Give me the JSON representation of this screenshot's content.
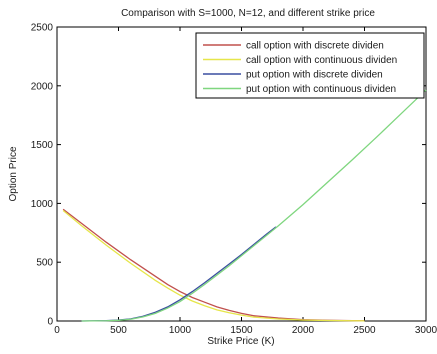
{
  "chart_data": {
    "type": "line",
    "title": "Comparison with S=1000, N=12, and different strike price",
    "xlabel": "Strike Price (K)",
    "ylabel": "Option Price",
    "xlim": [
      0,
      3000
    ],
    "ylim": [
      0,
      2500
    ],
    "xticks": [
      0,
      500,
      1000,
      1500,
      2000,
      2500,
      3000
    ],
    "yticks": [
      0,
      500,
      1000,
      1500,
      2000,
      2500
    ],
    "xtick_labels": [
      "0",
      "500",
      "1000",
      "1500",
      "2000",
      "2500",
      "3000"
    ],
    "ytick_labels": [
      "0",
      "500",
      "1000",
      "1500",
      "2000",
      "2500"
    ],
    "grid": false,
    "legend_position": "top-right",
    "series": [
      {
        "name": "call option with discrete dividen",
        "color": "#c0504d",
        "x": [
          50,
          200,
          400,
          600,
          800,
          900,
          1000,
          1100,
          1200,
          1300,
          1400,
          1500,
          1600,
          1800,
          2000,
          2200,
          2400,
          2500
        ],
        "y": [
          950,
          830,
          670,
          520,
          380,
          310,
          250,
          200,
          160,
          120,
          90,
          65,
          45,
          25,
          12,
          6,
          3,
          2
        ]
      },
      {
        "name": "call option with continuous dividen",
        "color": "#e6e64a",
        "x": [
          50,
          200,
          400,
          600,
          800,
          900,
          1000,
          1100,
          1200,
          1300,
          1400,
          1500,
          1600,
          1800,
          2000,
          2200,
          2400,
          2500
        ],
        "y": [
          940,
          810,
          645,
          490,
          345,
          280,
          220,
          170,
          130,
          95,
          70,
          50,
          33,
          17,
          8,
          4,
          2,
          1
        ]
      },
      {
        "name": "put option with discrete dividen",
        "color": "#3a4fa0",
        "x": [
          200,
          400,
          500,
          600,
          700,
          800,
          900,
          1000,
          1100,
          1200,
          1300,
          1400,
          1500,
          1600,
          1700,
          1780
        ],
        "y": [
          0,
          3,
          8,
          18,
          40,
          75,
          120,
          180,
          250,
          325,
          405,
          485,
          565,
          650,
          735,
          800
        ]
      },
      {
        "name": "put option with continuous dividen",
        "color": "#7fd67f",
        "x": [
          200,
          400,
          500,
          600,
          700,
          800,
          900,
          1000,
          1100,
          1200,
          1300,
          1400,
          1500,
          1600,
          1700,
          1800,
          2000,
          2200,
          2400,
          2600,
          2800,
          3000
        ],
        "y": [
          0,
          2,
          6,
          15,
          35,
          65,
          110,
          165,
          235,
          310,
          390,
          470,
          555,
          640,
          725,
          810,
          990,
          1180,
          1370,
          1565,
          1765,
          1965
        ]
      }
    ]
  }
}
